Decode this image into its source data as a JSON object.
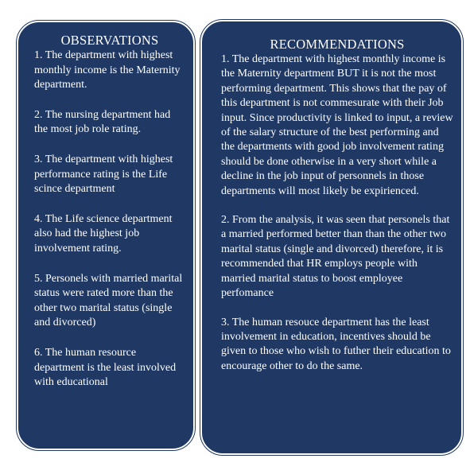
{
  "observations": {
    "title": "OBSERVATIONS",
    "items": [
      "1. The department with highest monthly income is the Maternity department.",
      "2. The nursing department had the most job role rating.",
      "3. The department with highest performance rating is the Life scince department",
      "4. The Life science department also had the highest job involvement rating.",
      "5. Personels with married marital status were rated more than the other two marital status (single and divorced)",
      "6. The human resource department is the least involved with educational"
    ]
  },
  "recommendations": {
    "title": "RECOMMENDATIONS",
    "items": [
      "1. The department with highest monthly income is the Maternity department BUT it is not the most performing department. This shows that the pay of this department is not commesurate with their Job input. Since productivity is linked to input, a review of the salary structure of the best performing and the departments with good job involvement rating should be done otherwise in a very short while a decline in the job input of personnels in those departments will most likely be expirienced.",
      "2. From the analysis, it was seen that personels that a married performed better than than the other two marital status (single and divorced) therefore, it is recommended that HR employs people with married marital status to boost employee perfomance",
      "3. The human resouce department has the least involvement in education, incentives should be given to those who wish to futher their education to encourage other to do the same."
    ]
  },
  "colors": {
    "panel_background": "#1f3864",
    "text": "#ffffff",
    "page_background": "#ffffff"
  }
}
